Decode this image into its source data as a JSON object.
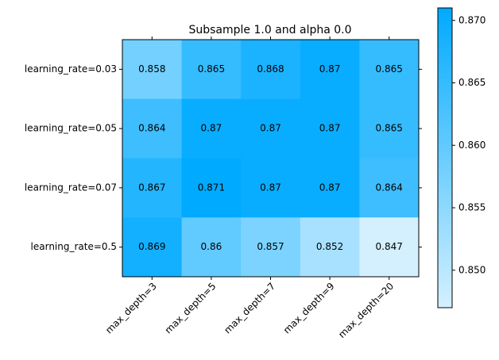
{
  "chart_data": {
    "type": "heatmap",
    "title": "Subsample 1.0 and alpha 0.0",
    "x_categories": [
      "max_depth=3",
      "max_depth=5",
      "max_depth=7",
      "max_depth=9",
      "max_depth=20"
    ],
    "y_categories": [
      "learning_rate=0.03",
      "learning_rate=0.05",
      "learning_rate=0.07",
      "learning_rate=0.5"
    ],
    "values": [
      [
        0.858,
        0.865,
        0.868,
        0.87,
        0.865
      ],
      [
        0.864,
        0.87,
        0.87,
        0.87,
        0.865
      ],
      [
        0.867,
        0.871,
        0.87,
        0.87,
        0.864
      ],
      [
        0.869,
        0.86,
        0.857,
        0.852,
        0.847
      ]
    ],
    "colormap": [
      "#d4f0ff",
      "#00aaff"
    ],
    "clim": [
      0.847,
      0.871
    ],
    "cticks": [
      {
        "value": 0.85,
        "label": "0.850"
      },
      {
        "value": 0.855,
        "label": "0.855"
      },
      {
        "value": 0.86,
        "label": "0.860"
      },
      {
        "value": 0.865,
        "label": "0.865"
      },
      {
        "value": 0.87,
        "label": "0.870"
      }
    ]
  }
}
